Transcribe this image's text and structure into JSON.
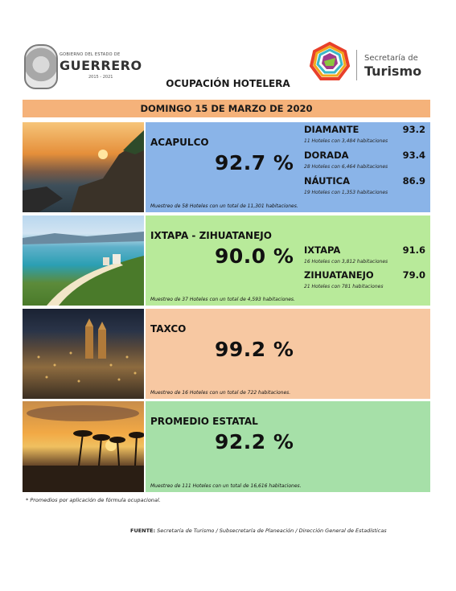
{
  "header": {
    "gov_small": "GOBIERNO DEL ESTADO DE",
    "gov_big": "GUERRERO",
    "gov_years": "2015 - 2021",
    "tur_small": "Secretaría de",
    "tur_big": "Turismo",
    "title": "OCUPACIÓN HOTELERA",
    "date": "DOMINGO 15 DE MARZO DE 2020"
  },
  "regions": [
    {
      "name": "ACAPULCO",
      "value": "92.7 %",
      "sample": "Muestreo de 58 Hoteles con un total de 11,301 habitaciones.",
      "zones": [
        {
          "name": "DIAMANTE",
          "value": "93.2",
          "note": "11 Hoteles con 3,484 habitaciones"
        },
        {
          "name": "DORADA",
          "value": "93.4",
          "note": "28 Hoteles con 6,464 habitaciones"
        },
        {
          "name": "NÁUTICA",
          "value": "86.9",
          "note": "19 Hoteles con 1,353 habitaciones"
        }
      ]
    },
    {
      "name": "IXTAPA - ZIHUATANEJO",
      "value": "90.0 %",
      "sample": "Muestreo de 37 Hoteles con un total de 4,593 habitaciones.",
      "zones": [
        {
          "name": "IXTAPA",
          "value": "91.6",
          "note": "16 Hoteles con 3,812 habitaciones"
        },
        {
          "name": "ZIHUATANEJO",
          "value": "79.0",
          "note": "21 Hoteles con 781 habitaciones"
        }
      ]
    },
    {
      "name": "TAXCO",
      "value": "99.2 %",
      "sample": "Muestreo de 16 Hoteles con un total de 722 habitaciones."
    },
    {
      "name": "PROMEDIO ESTATAL",
      "value": "92.2 %",
      "sample": "Muestreo de 111 Hoteles con un total de 16,616 habitaciones."
    }
  ],
  "footer": {
    "note": "* Promedios por aplicación de fórmula ocupacional.",
    "source_label": "FUENTE:",
    "source_text": "Secretaría de Turismo / Subsecretaría de Planeación / Dirección General de Estadísticas"
  },
  "colors": {
    "acapulco_panel": "#8ab4e8",
    "ixtapa_panel": "#b8ea9a",
    "taxco_panel": "#f7c8a2",
    "estatal_panel": "#a6e0a8",
    "date_bar": "#f5b27a"
  }
}
